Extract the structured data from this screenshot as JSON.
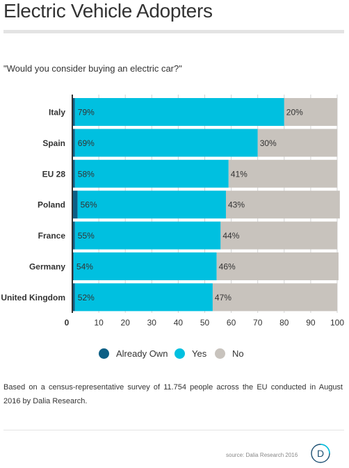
{
  "title": "Electric Vehicle Adopters",
  "subtitle": "\"Would you consider buying an electric car?\"",
  "chart_data": {
    "type": "bar",
    "orientation": "horizontal",
    "stacked": true,
    "categories": [
      "Italy",
      "Spain",
      "EU 28",
      "Poland",
      "France",
      "Germany",
      "United Kingdom"
    ],
    "series": [
      {
        "name": "Already Own",
        "values": [
          1,
          1,
          1,
          2,
          1,
          0.5,
          1
        ]
      },
      {
        "name": "Yes",
        "values": [
          79,
          69,
          58,
          56,
          55,
          54,
          52
        ]
      },
      {
        "name": "No",
        "values": [
          20,
          30,
          41,
          43,
          44,
          46,
          47
        ]
      }
    ],
    "yes_labels": [
      "79%",
      "69%",
      "58%",
      "56%",
      "55%",
      "54%",
      "52%"
    ],
    "no_labels": [
      "20%",
      "30%",
      "41%",
      "43%",
      "44%",
      "46%",
      "47%"
    ],
    "xlim": [
      0,
      100
    ],
    "xticks": [
      0,
      10,
      20,
      30,
      40,
      50,
      60,
      70,
      80,
      90,
      100
    ],
    "grid": true,
    "legend_position": "bottom"
  },
  "legend": {
    "items": [
      {
        "label": "Already Own",
        "color": "#0d5f85"
      },
      {
        "label": "Yes",
        "color": "#00c0e0"
      },
      {
        "label": "No",
        "color": "#c8c3bd"
      }
    ]
  },
  "note": "Based on a census-representative survey of 11.754 people across the EU conducted in August 2016 by Dalia Research.",
  "footer": {
    "source": "source: Dalia Research 2016",
    "logo_letter": "D"
  }
}
